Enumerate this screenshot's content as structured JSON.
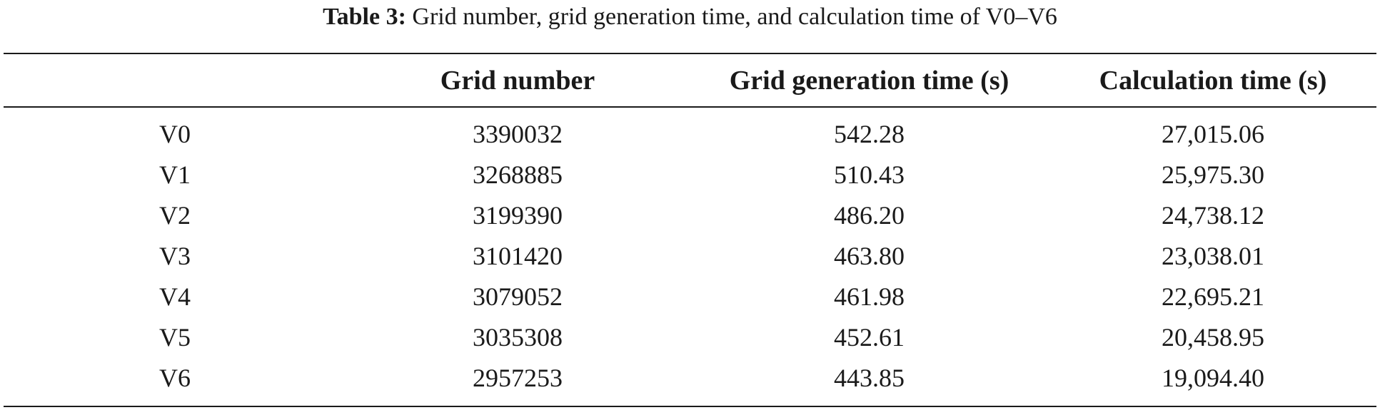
{
  "caption": {
    "label": "Table 3:",
    "text": " Grid number, grid generation time, and calculation time of V0–V6"
  },
  "table": {
    "headers": [
      "",
      "Grid number",
      "Grid generation time (s)",
      "Calculation time (s)"
    ],
    "rows": [
      [
        "V0",
        "3390032",
        "542.28",
        "27,015.06"
      ],
      [
        "V1",
        "3268885",
        "510.43",
        "25,975.30"
      ],
      [
        "V2",
        "3199390",
        "486.20",
        "24,738.12"
      ],
      [
        "V3",
        "3101420",
        "463.80",
        "23,038.01"
      ],
      [
        "V4",
        "3079052",
        "461.98",
        "22,695.21"
      ],
      [
        "V5",
        "3035308",
        "452.61",
        "20,458.95"
      ],
      [
        "V6",
        "2957253",
        "443.85",
        "19,094.40"
      ]
    ]
  }
}
